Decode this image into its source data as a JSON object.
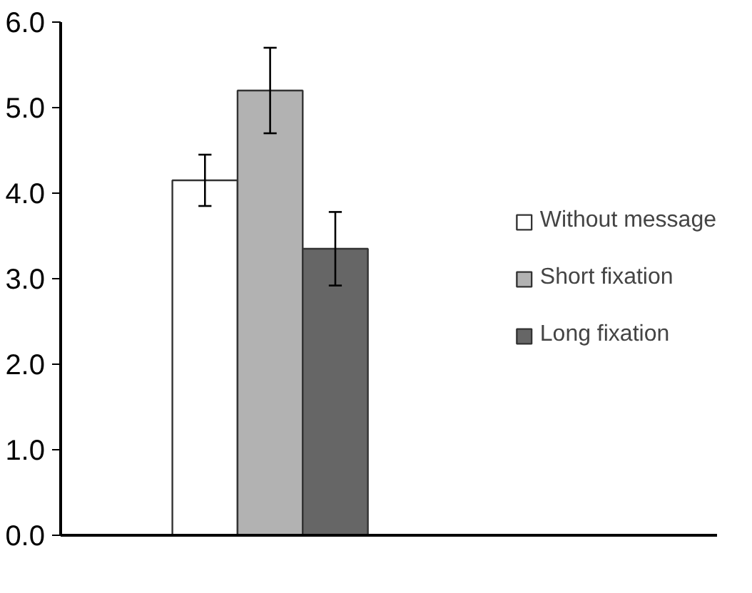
{
  "chart_data": {
    "type": "bar",
    "categories": [
      null
    ],
    "series": [
      {
        "name": "Without message",
        "color": "#ffffff",
        "values": [
          4.15
        ],
        "errors": [
          0.3
        ]
      },
      {
        "name": "Short fixation",
        "color": "#b2b2b2",
        "values": [
          5.2
        ],
        "errors": [
          0.5
        ]
      },
      {
        "name": "Long fixation",
        "color": "#666666",
        "values": [
          3.35
        ],
        "errors": [
          0.43
        ]
      }
    ],
    "ylim": [
      0,
      6
    ],
    "yticks": [
      {
        "value": 0,
        "label": "0.0"
      },
      {
        "value": 1,
        "label": "1.0"
      },
      {
        "value": 2,
        "label": "2.0"
      },
      {
        "value": 3,
        "label": "3.0"
      },
      {
        "value": 4,
        "label": "4.0"
      },
      {
        "value": 5,
        "label": "5.0"
      },
      {
        "value": 6,
        "label": "6.0"
      }
    ],
    "grid": false,
    "legend": "right"
  }
}
